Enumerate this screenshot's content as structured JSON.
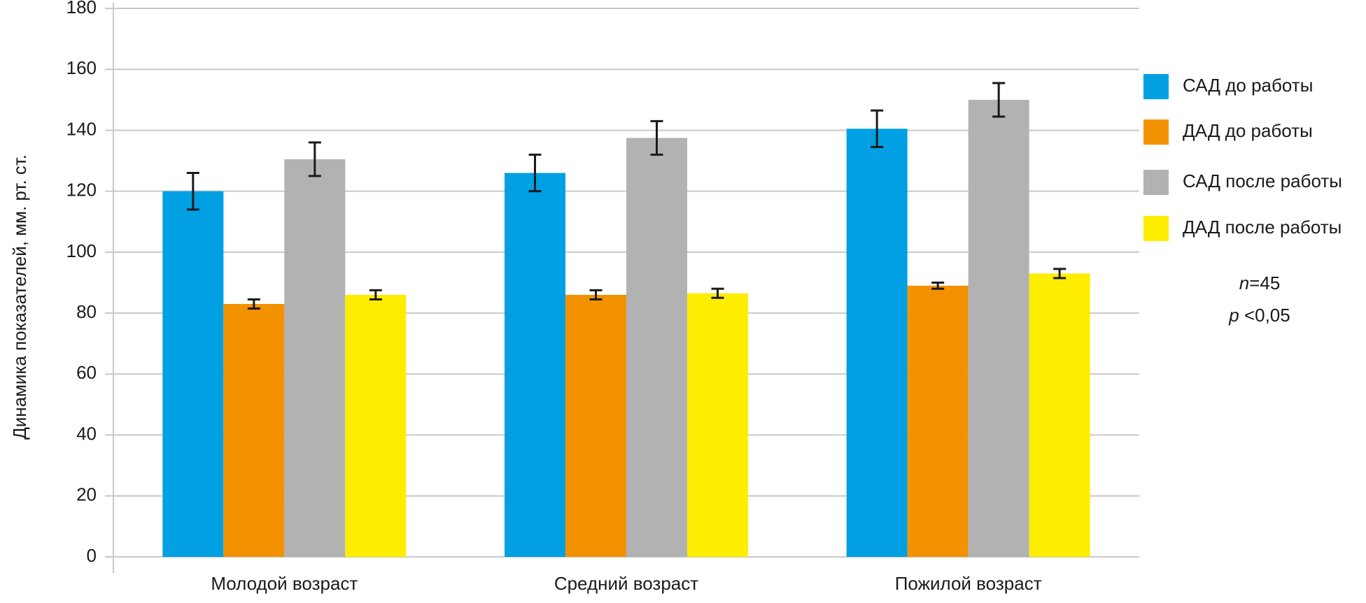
{
  "chart_data": {
    "type": "bar",
    "y_label": "Динамика показателей, мм. рт. ст.",
    "categories": [
      "Молодой возраст",
      "Средний возраст",
      "Пожилой возраст"
    ],
    "series": [
      {
        "name": "САД до работы",
        "color": "#00a0e3",
        "values": [
          120,
          126,
          140.5
        ],
        "errors": [
          6,
          6,
          6
        ]
      },
      {
        "name": "ДАД до работы",
        "color": "#f39200",
        "values": [
          83,
          86,
          89
        ],
        "errors": [
          1.5,
          1.5,
          1
        ]
      },
      {
        "name": "САД после работы",
        "color": "#b2b2b2",
        "values": [
          130.5,
          137.5,
          150
        ],
        "errors": [
          5.5,
          5.5,
          5.5
        ]
      },
      {
        "name": "ДАД после работы",
        "color": "#ffed00",
        "values": [
          86,
          86.5,
          93
        ],
        "errors": [
          1.5,
          1.5,
          1.5
        ]
      }
    ],
    "ylim": [
      0,
      180
    ],
    "yticks": [
      0,
      20,
      40,
      60,
      80,
      100,
      120,
      140,
      160,
      180
    ],
    "grid": true,
    "legend": "right",
    "annotations": [
      [
        "n",
        "=45"
      ],
      [
        "p",
        " <0,05"
      ]
    ]
  }
}
